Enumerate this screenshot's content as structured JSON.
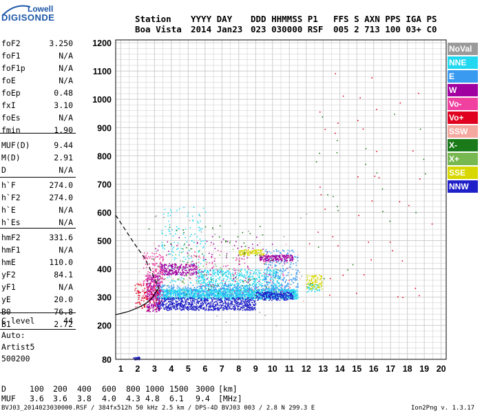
{
  "logo": {
    "top": "Lowell",
    "main": "DIGISONDE"
  },
  "header": {
    "row1": [
      "Station",
      "YYYY DAY",
      "DDD HHMMSS P1",
      "FFS S AXN PPS IGA PS"
    ],
    "row2": [
      "Boa Vista",
      "2014 Jan23",
      "023 030000 RSF",
      "005 2 713 100 03+ C0"
    ]
  },
  "params": [
    {
      "k": "foF2",
      "v": "3.250"
    },
    {
      "k": "foF1",
      "v": "N/A"
    },
    {
      "k": "foF1p",
      "v": "N/A"
    },
    {
      "k": "foE",
      "v": "N/A"
    },
    {
      "k": "foEp",
      "v": "0.48"
    },
    {
      "k": "fxI",
      "v": "3.10"
    },
    {
      "k": "foEs",
      "v": "N/A"
    },
    {
      "k": "fmin",
      "v": "1.90"
    },
    {
      "k": "MUF(D)",
      "v": "9.44"
    },
    {
      "k": "M(D)",
      "v": "2.91"
    },
    {
      "k": "D",
      "v": "N/A"
    },
    {
      "k": "h`F",
      "v": "274.0"
    },
    {
      "k": "h`F2",
      "v": "274.0"
    },
    {
      "k": "h`E",
      "v": "N/A"
    },
    {
      "k": "h`Es",
      "v": "N/A"
    },
    {
      "k": "hmF2",
      "v": "331.6"
    },
    {
      "k": "hmF1",
      "v": "N/A"
    },
    {
      "k": "hmE",
      "v": "110.0"
    },
    {
      "k": "yF2",
      "v": "84.1"
    },
    {
      "k": "yF1",
      "v": "N/A"
    },
    {
      "k": "yE",
      "v": "20.0"
    },
    {
      "k": "B0",
      "v": "76.8"
    },
    {
      "k": "B1",
      "v": "2.72"
    },
    {
      "k": "C-level",
      "v": "44"
    }
  ],
  "auto": {
    "l1": "Auto:",
    "l2": "Artist5",
    "l3": "500200"
  },
  "legend": [
    {
      "label": "NoVal",
      "color": "#9a9a9a"
    },
    {
      "label": "NNE",
      "color": "#22d8f0"
    },
    {
      "label": "E",
      "color": "#3a9af0"
    },
    {
      "label": "W",
      "color": "#a000a0"
    },
    {
      "label": "Vo-",
      "color": "#f040a0"
    },
    {
      "label": "Vo+",
      "color": "#e00020"
    },
    {
      "label": "SSW",
      "color": "#f4a8a0"
    },
    {
      "label": "X-",
      "color": "#1a7a1a"
    },
    {
      "label": "X+",
      "color": "#78b850"
    },
    {
      "label": "SSE",
      "color": "#d8d800"
    },
    {
      "label": "NNW",
      "color": "#2020c8"
    }
  ],
  "footer": {
    "d_label": "D",
    "d_values": [
      "100",
      "200",
      "400",
      "600",
      "800",
      "1000",
      "1500",
      "3000"
    ],
    "d_unit": "[km]",
    "muf_label": "MUF",
    "muf_values": [
      "3.6",
      "3.6",
      "3.8",
      "4.0",
      "4.3",
      "4.8",
      "6.1",
      "9.4"
    ],
    "muf_unit": "[MHz]",
    "file_line": "BVJ03_2014023030000.RSF / 384fx512h 50 kHz 2.5 km / DPS-4D BVJ03 003 / 2.8 N 299.3 E",
    "version": "Ion2Png v. 1.3.17"
  },
  "chart_data": {
    "type": "scatter",
    "title": "",
    "xlabel": "",
    "ylabel": "",
    "xlim": [
      0.7,
      20.3
    ],
    "ylim": [
      80,
      1210
    ],
    "x_ticks": [
      1,
      2,
      3,
      4,
      5,
      6,
      7,
      8,
      9,
      10,
      11,
      12,
      13,
      14,
      15,
      16,
      17,
      18,
      19,
      20
    ],
    "y_ticks": [
      80,
      200,
      300,
      400,
      500,
      600,
      700,
      800,
      900,
      1000,
      1100,
      1200
    ],
    "grid": true,
    "legend_position": "right",
    "series": [
      {
        "legend": "NNE",
        "color": "#22d8f0",
        "clusters": [
          {
            "x": [
              3.0,
              11.5
            ],
            "y": [
              295,
              330
            ],
            "n": 1500
          },
          {
            "x": [
              5.5,
              10.5
            ],
            "y": [
              330,
              400
            ],
            "n": 500
          },
          {
            "x": [
              3.4,
              6.0
            ],
            "y": [
              350,
              620
            ],
            "n": 160
          },
          {
            "x": [
              12.0,
              12.8
            ],
            "y": [
              320,
              350
            ],
            "n": 40
          }
        ]
      },
      {
        "legend": "E",
        "color": "#3a9af0",
        "clusters": [
          {
            "x": [
              3.0,
              11.0
            ],
            "y": [
              305,
              345
            ],
            "n": 420
          },
          {
            "x": [
              9.5,
              11.5
            ],
            "y": [
              330,
              470
            ],
            "n": 200
          }
        ]
      },
      {
        "legend": "NNW",
        "color": "#2020c8",
        "clusters": [
          {
            "x": [
              3.1,
              9.0
            ],
            "y": [
              255,
              300
            ],
            "n": 800
          },
          {
            "x": [
              9.0,
              11.2
            ],
            "y": [
              290,
              320
            ],
            "n": 220
          },
          {
            "x": [
              1.7,
              2.1
            ],
            "y": [
              80,
              90
            ],
            "n": 30
          }
        ]
      },
      {
        "legend": "W",
        "color": "#a000a0",
        "clusters": [
          {
            "x": [
              2.5,
              3.3
            ],
            "y": [
              250,
              380
            ],
            "n": 260
          },
          {
            "x": [
              3.3,
              5.5
            ],
            "y": [
              380,
              420
            ],
            "n": 220
          },
          {
            "x": [
              9.2,
              11.2
            ],
            "y": [
              430,
              450
            ],
            "n": 160
          },
          {
            "x": [
              3.0,
              10.0
            ],
            "y": [
              350,
              520
            ],
            "n": 80
          }
        ]
      },
      {
        "legend": "Vo-",
        "color": "#f040a0",
        "clusters": [
          {
            "x": [
              2.3,
              3.5
            ],
            "y": [
              290,
              460
            ],
            "n": 200
          },
          {
            "x": [
              5.0,
              11.0
            ],
            "y": [
              310,
              470
            ],
            "n": 110
          }
        ]
      },
      {
        "legend": "Vo+",
        "color": "#e00020",
        "clusters": [
          {
            "x": [
              1.8,
              3.3
            ],
            "y": [
              250,
              350
            ],
            "n": 90
          },
          {
            "x": [
              12.0,
              19.5
            ],
            "y": [
              300,
              1180
            ],
            "n": 45
          }
        ]
      },
      {
        "legend": "SSE",
        "color": "#d8d800",
        "clusters": [
          {
            "x": [
              8.0,
              9.5
            ],
            "y": [
              450,
              470
            ],
            "n": 100
          },
          {
            "x": [
              12.0,
              12.9
            ],
            "y": [
              330,
              380
            ],
            "n": 90
          }
        ]
      },
      {
        "legend": "X-",
        "color": "#1a7a1a",
        "clusters": [
          {
            "x": [
              2.5,
              10.0
            ],
            "y": [
              300,
              560
            ],
            "n": 55
          },
          {
            "x": [
              12.0,
              19.5
            ],
            "y": [
              300,
              1000
            ],
            "n": 25
          }
        ]
      },
      {
        "legend": "X+",
        "color": "#78b850",
        "clusters": [
          {
            "x": [
              3.0,
              10.5
            ],
            "y": [
              320,
              480
            ],
            "n": 50
          }
        ]
      },
      {
        "legend": "SSW",
        "color": "#f4a8a0",
        "clusters": [
          {
            "x": [
              2.0,
              12.0
            ],
            "y": [
              280,
              500
            ],
            "n": 30
          }
        ]
      },
      {
        "legend": "NoVal",
        "color": "#9a9a9a",
        "clusters": [
          {
            "x": [
              1.5,
              12.0
            ],
            "y": [
              200,
              600
            ],
            "n": 40
          }
        ]
      }
    ],
    "trace": {
      "name": "profile",
      "x": [
        0.7,
        1.0,
        1.5,
        2.0,
        2.5,
        2.9,
        3.1,
        3.25
      ],
      "y": [
        238,
        242,
        250,
        262,
        278,
        300,
        320,
        331.6
      ]
    },
    "trace_dashed": {
      "x": [
        0.7,
        1.2,
        1.8,
        2.4,
        2.9,
        3.25
      ],
      "y": [
        590,
        545,
        490,
        440,
        380,
        331.6
      ]
    }
  }
}
